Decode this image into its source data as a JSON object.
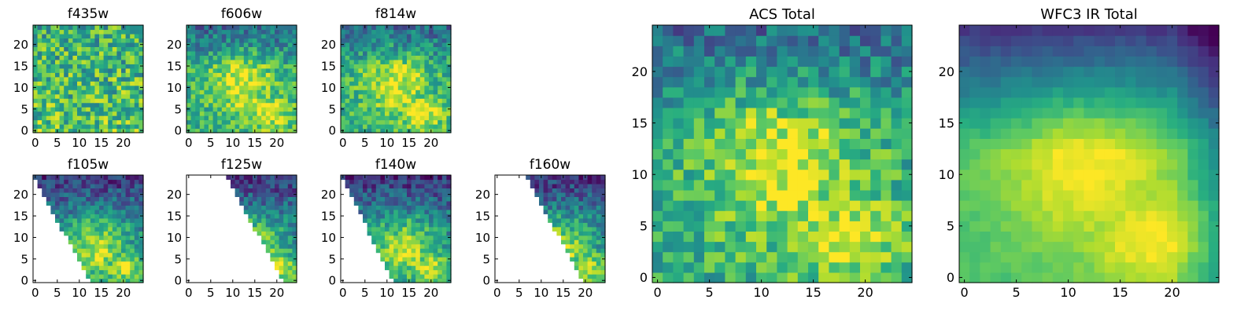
{
  "figure": {
    "background": "#ffffff",
    "colormap": "viridis",
    "colormap_stops": [
      "#440154",
      "#472f7d",
      "#3b528b",
      "#2c728e",
      "#21918c",
      "#28ae80",
      "#5ec962",
      "#addc30",
      "#fde725"
    ]
  },
  "chart_data": [
    {
      "name": "f435w",
      "type": "heatmap",
      "title": "f435w",
      "grid": [
        25,
        25
      ],
      "xlim": [
        0,
        25
      ],
      "ylim": [
        0,
        25
      ],
      "xticks": [
        "0",
        "5",
        "10",
        "15",
        "20"
      ],
      "yticks": [
        "0",
        "5",
        "10",
        "15",
        "20"
      ],
      "coverage": "full",
      "pattern": "noisy-uniform",
      "value_range": [
        0,
        1
      ]
    },
    {
      "name": "f606w",
      "type": "heatmap",
      "title": "f606w",
      "grid": [
        25,
        25
      ],
      "xlim": [
        0,
        25
      ],
      "ylim": [
        0,
        25
      ],
      "xticks": [
        "0",
        "5",
        "10",
        "15",
        "20"
      ],
      "yticks": [
        "0",
        "5",
        "10",
        "15",
        "20"
      ],
      "coverage": "full",
      "pattern": "central-source",
      "value_range": [
        0,
        1
      ]
    },
    {
      "name": "f814w",
      "type": "heatmap",
      "title": "f814w",
      "grid": [
        25,
        25
      ],
      "xlim": [
        0,
        25
      ],
      "ylim": [
        0,
        25
      ],
      "xticks": [
        "0",
        "5",
        "10",
        "15",
        "20"
      ],
      "yticks": [
        "0",
        "5",
        "10",
        "15",
        "20"
      ],
      "coverage": "full",
      "pattern": "central-source",
      "value_range": [
        0,
        1
      ]
    },
    {
      "name": "f105w",
      "type": "heatmap",
      "title": "f105w",
      "grid": [
        25,
        25
      ],
      "xlim": [
        0,
        25
      ],
      "ylim": [
        0,
        25
      ],
      "xticks": [
        "0",
        "5",
        "10",
        "15",
        "20"
      ],
      "yticks": [
        "0",
        "5",
        "10",
        "15",
        "20"
      ],
      "coverage": "triangle",
      "mask_x0": 0,
      "mask_x1": 13,
      "pattern": "ir-source",
      "value_range": [
        0,
        1
      ]
    },
    {
      "name": "f125w",
      "type": "heatmap",
      "title": "f125w",
      "grid": [
        25,
        25
      ],
      "xlim": [
        0,
        25
      ],
      "ylim": [
        0,
        25
      ],
      "xticks": [
        "0",
        "5",
        "10",
        "15",
        "20"
      ],
      "yticks": [
        "0",
        "5",
        "10",
        "15",
        "20"
      ],
      "coverage": "triangle",
      "mask_x0": 9,
      "mask_x1": 22,
      "pattern": "ir-source",
      "value_range": [
        0,
        1
      ]
    },
    {
      "name": "f140w",
      "type": "heatmap",
      "title": "f140w",
      "grid": [
        25,
        25
      ],
      "xlim": [
        0,
        25
      ],
      "ylim": [
        0,
        25
      ],
      "xticks": [
        "0",
        "5",
        "10",
        "15",
        "20"
      ],
      "yticks": [
        "0",
        "5",
        "10",
        "15",
        "20"
      ],
      "coverage": "triangle",
      "mask_x0": 0,
      "mask_x1": 12,
      "pattern": "ir-source",
      "value_range": [
        0,
        1
      ]
    },
    {
      "name": "f160w",
      "type": "heatmap",
      "title": "f160w",
      "grid": [
        25,
        25
      ],
      "xlim": [
        0,
        25
      ],
      "ylim": [
        0,
        25
      ],
      "xticks": [
        "0",
        "5",
        "10",
        "15",
        "20"
      ],
      "yticks": [
        "0",
        "5",
        "10",
        "15",
        "20"
      ],
      "coverage": "triangle",
      "mask_x0": 7,
      "mask_x1": 20,
      "pattern": "ir-source",
      "value_range": [
        0,
        1
      ]
    },
    {
      "name": "ACS Total",
      "type": "heatmap",
      "title": "ACS Total",
      "grid": [
        25,
        25
      ],
      "xlim": [
        0,
        25
      ],
      "ylim": [
        0,
        25
      ],
      "xticks": [
        "0",
        "5",
        "10",
        "15",
        "20"
      ],
      "yticks": [
        "0",
        "5",
        "10",
        "15",
        "20"
      ],
      "coverage": "full",
      "pattern": "central-source",
      "value_range": [
        0,
        1
      ]
    },
    {
      "name": "WFC3 IR Total",
      "type": "heatmap",
      "title": "WFC3 IR Total",
      "grid": [
        25,
        25
      ],
      "xlim": [
        0,
        25
      ],
      "ylim": [
        0,
        25
      ],
      "xticks": [
        "0",
        "5",
        "10",
        "15",
        "20"
      ],
      "yticks": [
        "0",
        "5",
        "10",
        "15",
        "20"
      ],
      "coverage": "full",
      "pattern": "smooth-source",
      "value_range": [
        0,
        1
      ]
    }
  ]
}
